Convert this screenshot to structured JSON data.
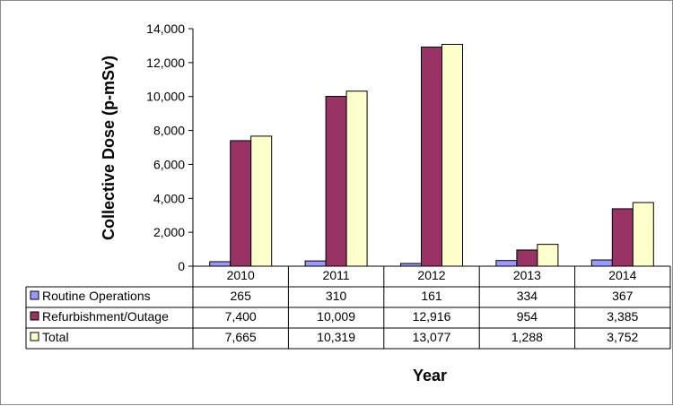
{
  "chart_data": {
    "type": "bar",
    "title": "",
    "xlabel": "Year",
    "ylabel": "Collective Dose (p-mSv)",
    "ylim": [
      0,
      14000
    ],
    "yticks": [
      "0",
      "2,000",
      "4,000",
      "6,000",
      "8,000",
      "10,000",
      "12,000",
      "14,000"
    ],
    "grid": false,
    "legend": "data-table",
    "categories": [
      "2010",
      "2011",
      "2012",
      "2013",
      "2014"
    ],
    "series": [
      {
        "name": "Routine Operations",
        "color": "#9999FF",
        "values": [
          265,
          310,
          161,
          334,
          367
        ],
        "labels": [
          "265",
          "310",
          "161",
          "334",
          "367"
        ]
      },
      {
        "name": "Refurbishment/Outage",
        "color": "#993366",
        "values": [
          7400,
          10009,
          12916,
          954,
          3385
        ],
        "labels": [
          "7,400",
          "10,009",
          "12,916",
          "954",
          "3,385"
        ]
      },
      {
        "name": "Total",
        "color": "#FFFFCC",
        "values": [
          7665,
          10319,
          13077,
          1288,
          3752
        ],
        "labels": [
          "7,665",
          "10,319",
          "13,077",
          "1,288",
          "3,752"
        ]
      }
    ]
  }
}
